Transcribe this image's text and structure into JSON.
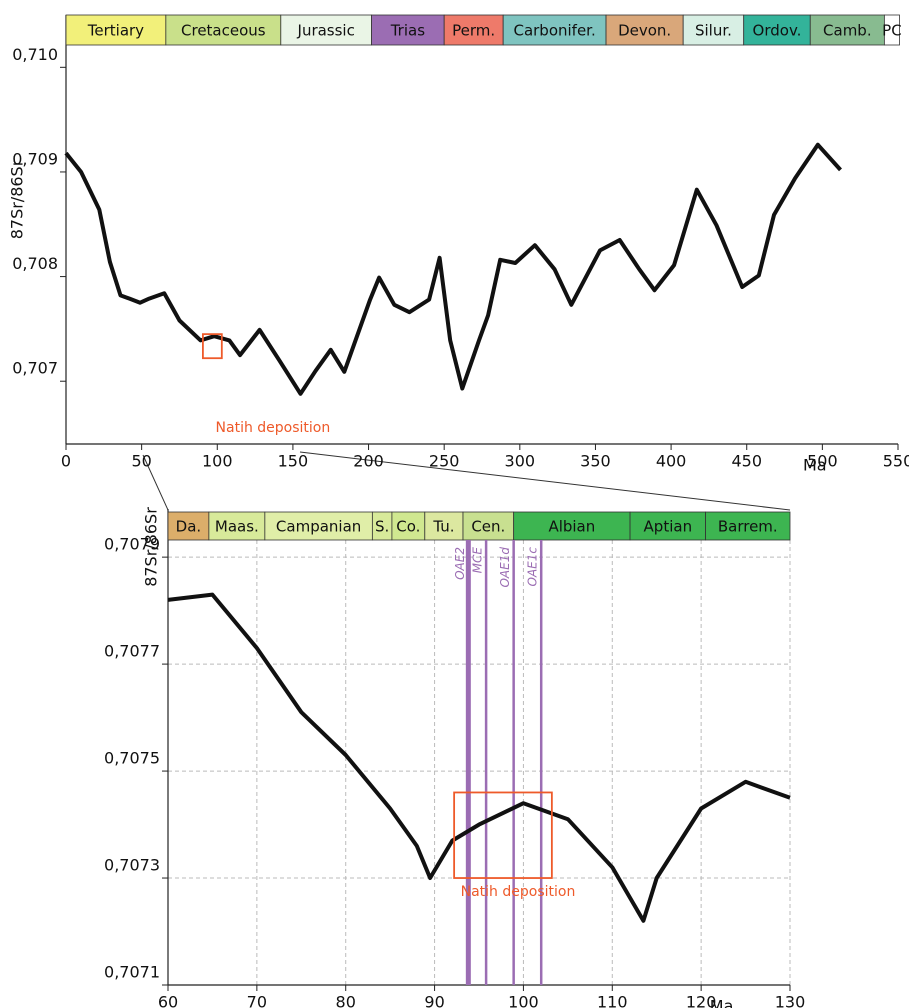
{
  "chart_data": [
    {
      "type": "line",
      "y_label": "87Sr/86Sr",
      "x_label": "Ma",
      "x": [
        0,
        10,
        22,
        29,
        36,
        42,
        49,
        55,
        65,
        75,
        89,
        98,
        108,
        115,
        128,
        141,
        155,
        165,
        175,
        184,
        201,
        207,
        217,
        227,
        240,
        247,
        254,
        262,
        273,
        279,
        287,
        297,
        310,
        323,
        334,
        353,
        366,
        379,
        389,
        402,
        417,
        430,
        447,
        458,
        468,
        482,
        497,
        512
      ],
      "series": [
        {
          "color": "#111111",
          "values": [
            0.70918,
            0.709,
            0.70864,
            0.70814,
            0.70782,
            0.70779,
            0.70775,
            0.70779,
            0.70784,
            0.70758,
            0.70739,
            0.70743,
            0.70739,
            0.70725,
            0.70749,
            0.7072,
            0.70688,
            0.7071,
            0.7073,
            0.70709,
            0.70778,
            0.70799,
            0.70773,
            0.70766,
            0.70778,
            0.70818,
            0.70739,
            0.70693,
            0.70739,
            0.70763,
            0.70816,
            0.70813,
            0.7083,
            0.70807,
            0.70773,
            0.70825,
            0.70835,
            0.70807,
            0.70787,
            0.70811,
            0.70883,
            0.70849,
            0.7079,
            0.70801,
            0.70859,
            0.70894,
            0.70926,
            0.70902
          ]
        }
      ],
      "xlim": [
        0,
        550
      ],
      "xticks": [
        0,
        50,
        100,
        150,
        200,
        250,
        300,
        350,
        400,
        450,
        500,
        550
      ],
      "ylim": [
        0.7064,
        0.7105
      ],
      "yticks": [
        {
          "value": 0.707,
          "label": "0,707"
        },
        {
          "value": 0.708,
          "label": "0,708"
        },
        {
          "value": 0.709,
          "label": "0,709"
        },
        {
          "value": 0.71,
          "label": "0,710"
        }
      ],
      "grid": false,
      "periods": [
        {
          "name": "Tertiary",
          "start": 0,
          "end": 66,
          "color": "#f2f07a"
        },
        {
          "name": "Cretaceous",
          "start": 66,
          "end": 142,
          "color": "#c9e08a"
        },
        {
          "name": "Jurassic",
          "start": 142,
          "end": 202,
          "color": "#eaf5e6"
        },
        {
          "name": "Trias",
          "start": 202,
          "end": 250,
          "color": "#9b6db3"
        },
        {
          "name": "Perm.",
          "start": 250,
          "end": 289,
          "color": "#ee7a6a"
        },
        {
          "name": "Carbonifer.",
          "start": 289,
          "end": 357,
          "color": "#7fc4c0"
        },
        {
          "name": "Devon.",
          "start": 357,
          "end": 408,
          "color": "#d9a77a"
        },
        {
          "name": "Silur.",
          "start": 408,
          "end": 448,
          "color": "#d8efe4"
        },
        {
          "name": "Ordov.",
          "start": 448,
          "end": 492,
          "color": "#33b39a"
        },
        {
          "name": "Camb.",
          "start": 492,
          "end": 541,
          "color": "#88bb90"
        },
        {
          "name": "PC",
          "start": 541,
          "end": 551,
          "color": "#ffffff"
        }
      ],
      "highlight": {
        "label": "Natih deposition",
        "x": [
          90.5,
          103
        ],
        "y": [
          0.70722,
          0.70745
        ],
        "color": "#ee5a2a"
      }
    },
    {
      "type": "line",
      "y_label": "87Sr/86Sr",
      "x_label": "Ma",
      "x": [
        60,
        65,
        70,
        75,
        80,
        85,
        88,
        89.5,
        92,
        95,
        100,
        105,
        110,
        113.5,
        115,
        120,
        125,
        130
      ],
      "series": [
        {
          "color": "#111111",
          "values": [
            0.70782,
            0.70783,
            0.70773,
            0.70761,
            0.70753,
            0.70743,
            0.70736,
            0.7073,
            0.70737,
            0.7074,
            0.70744,
            0.70741,
            0.70732,
            0.70722,
            0.7073,
            0.70743,
            0.70748,
            0.70745
          ]
        }
      ],
      "xlim": [
        60,
        130
      ],
      "xticks": [
        60,
        70,
        80,
        90,
        100,
        110,
        120,
        130
      ],
      "ylim": [
        0.7071,
        0.70799
      ],
      "yticks": [
        {
          "value": 0.7071,
          "label": "0,7071"
        },
        {
          "value": 0.7073,
          "label": "0,7073"
        },
        {
          "value": 0.7075,
          "label": "0,7075"
        },
        {
          "value": 0.7077,
          "label": "0,7077"
        },
        {
          "value": 0.7079,
          "label": "0,7079"
        }
      ],
      "grid": true,
      "periods": [
        {
          "name": "Da.",
          "start": 60,
          "end": 64.6,
          "color": "#dcae6a"
        },
        {
          "name": "Maas.",
          "start": 64.6,
          "end": 70.9,
          "color": "#d8ea9a"
        },
        {
          "name": "Campanian",
          "start": 70.9,
          "end": 83,
          "color": "#e0eea8"
        },
        {
          "name": "S.",
          "start": 83,
          "end": 85.2,
          "color": "#d8ea9a"
        },
        {
          "name": "Co.",
          "start": 85.2,
          "end": 88.9,
          "color": "#d0e890"
        },
        {
          "name": "Tu.",
          "start": 88.9,
          "end": 93.2,
          "color": "#dce8a0"
        },
        {
          "name": "Cen.",
          "start": 93.2,
          "end": 98.9,
          "color": "#c8e090"
        },
        {
          "name": "Albian",
          "start": 98.9,
          "end": 112,
          "color": "#3db551"
        },
        {
          "name": "Aptian",
          "start": 112,
          "end": 120.5,
          "color": "#3db551"
        },
        {
          "name": "Barrem.",
          "start": 120.5,
          "end": 130,
          "color": "#3db551"
        }
      ],
      "events": [
        {
          "name": "OAE2",
          "x": 93.8,
          "color": "#9b6db3"
        },
        {
          "name": "MCE",
          "x": 95.8,
          "color": "#9b6db3"
        },
        {
          "name": "OAE1d",
          "x": 98.9,
          "color": "#9b6db3"
        },
        {
          "name": "OAE1c",
          "x": 102,
          "color": "#9b6db3"
        }
      ],
      "highlight": {
        "label": "Natih deposition",
        "x": [
          92.2,
          103.2
        ],
        "y": [
          0.7073,
          0.70746
        ],
        "color": "#ee5a2a"
      }
    }
  ]
}
